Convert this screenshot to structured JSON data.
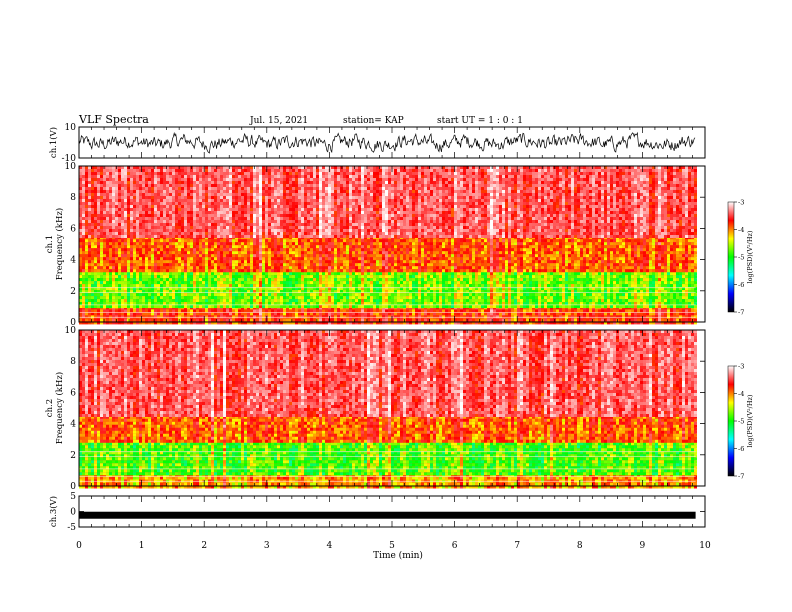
{
  "header": {
    "title": "VLF Spectra",
    "date": "Jul. 15, 2021",
    "station": "station= KAP",
    "start": "start UT =  1 : 0  : 1"
  },
  "colorbar": {
    "label": "log(PSD)(V²/Hz)",
    "ticks": [
      "-3",
      "-4",
      "-5",
      "-6",
      "-7"
    ],
    "colors": [
      "#000000",
      "#0000ff",
      "#00ffff",
      "#00ff00",
      "#ffff00",
      "#ff0000",
      "#ffffff"
    ]
  },
  "chart_data": [
    {
      "type": "line",
      "name": "ch1-waveform",
      "ylabel": "ch.1(V)",
      "ylim": [
        -10,
        10
      ],
      "yticks": [
        "10",
        "-10"
      ],
      "xlim": [
        0,
        10
      ],
      "description_values": {
        "typical_range": [
          -4,
          4
        ]
      }
    },
    {
      "type": "heatmap",
      "name": "ch1-spectrogram",
      "ylabel": "ch.1\nFrequency (kHz)",
      "ylim": [
        0,
        10
      ],
      "yticks": [
        "0",
        "2",
        "4",
        "6",
        "8",
        "10"
      ],
      "xlim": [
        0,
        9.85
      ],
      "bands": [
        {
          "from_khz": 0.0,
          "to_khz": 1.0,
          "log_psd": -4.0
        },
        {
          "from_khz": 1.0,
          "to_khz": 3.2,
          "log_psd": -4.8
        },
        {
          "from_khz": 3.2,
          "to_khz": 5.5,
          "log_psd": -4.1
        },
        {
          "from_khz": 5.5,
          "to_khz": 10.0,
          "log_psd": -3.6
        }
      ]
    },
    {
      "type": "heatmap",
      "name": "ch2-spectrogram",
      "ylabel": "ch.2\nFrequency (kHz)",
      "ylim": [
        0,
        10
      ],
      "yticks": [
        "0",
        "2",
        "4",
        "6",
        "8",
        "10"
      ],
      "xlim": [
        0,
        9.85
      ],
      "bands": [
        {
          "from_khz": 0.0,
          "to_khz": 0.8,
          "log_psd": -4.3
        },
        {
          "from_khz": 0.8,
          "to_khz": 2.8,
          "log_psd": -4.9
        },
        {
          "from_khz": 2.8,
          "to_khz": 4.5,
          "log_psd": -4.1
        },
        {
          "from_khz": 4.5,
          "to_khz": 10.0,
          "log_psd": -3.6
        }
      ]
    },
    {
      "type": "line",
      "name": "ch3-waveform",
      "ylabel": "ch.3(V)",
      "ylim": [
        -5,
        5
      ],
      "yticks": [
        "5",
        "0",
        "-5"
      ],
      "xlim": [
        0,
        10
      ],
      "level": -1.2
    }
  ],
  "xaxis": {
    "label": "Time (min)",
    "ticks": [
      "0",
      "1",
      "2",
      "3",
      "4",
      "5",
      "6",
      "7",
      "8",
      "9",
      "10"
    ],
    "range": [
      0,
      10
    ]
  }
}
